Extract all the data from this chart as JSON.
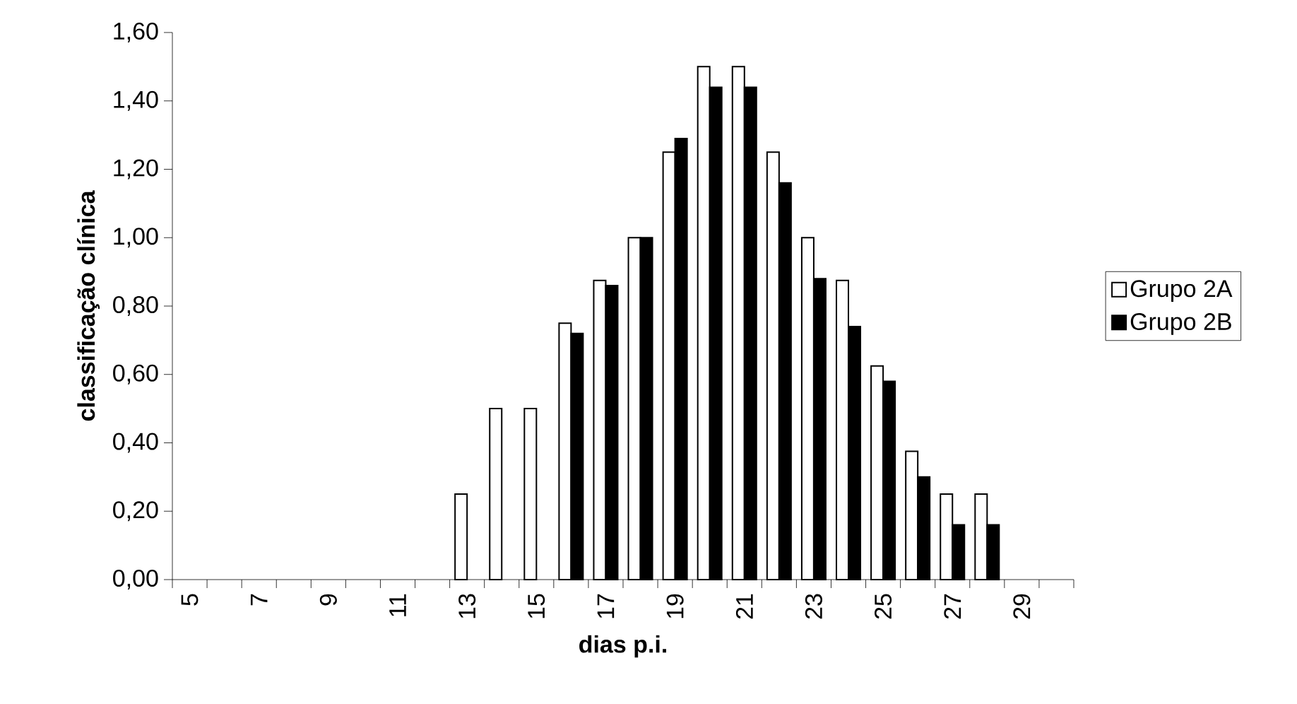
{
  "chart_data": {
    "type": "bar",
    "xlabel": "dias p.i.",
    "ylabel": "classificação clínica",
    "categories": [
      "5",
      null,
      "7",
      null,
      "9",
      null,
      "11",
      null,
      "13",
      null,
      "15",
      null,
      "17",
      null,
      "19",
      null,
      "21",
      null,
      "23",
      null,
      "25",
      null,
      "27",
      null,
      "29",
      null
    ],
    "series": [
      {
        "name": "Grupo 2A",
        "color": "#ffffff",
        "values": [
          null,
          null,
          null,
          null,
          null,
          null,
          null,
          null,
          0.25,
          0.5,
          0.5,
          0.75,
          0.875,
          1.0,
          1.25,
          1.5,
          1.5,
          1.25,
          1.0,
          0.875,
          0.625,
          0.375,
          0.25,
          0.25,
          null,
          null
        ]
      },
      {
        "name": "Grupo 2B",
        "color": "#000000",
        "values": [
          null,
          null,
          null,
          null,
          null,
          null,
          null,
          null,
          null,
          null,
          null,
          0.72,
          0.86,
          1.0,
          1.29,
          1.44,
          1.44,
          1.16,
          0.88,
          0.74,
          0.58,
          0.3,
          0.16,
          0.16,
          null,
          null
        ]
      }
    ],
    "ylim": [
      0,
      1.6
    ],
    "yticks": [
      {
        "value": 0,
        "label": "0,00"
      },
      {
        "value": 0.2,
        "label": "0,20"
      },
      {
        "value": 0.4,
        "label": "0,40"
      },
      {
        "value": 0.6,
        "label": "0,60"
      },
      {
        "value": 0.8,
        "label": "0,80"
      },
      {
        "value": 1.0,
        "label": "1,00"
      },
      {
        "value": 1.2,
        "label": "1,20"
      },
      {
        "value": 1.4,
        "label": "1,40"
      },
      {
        "value": 1.6,
        "label": "1,60"
      }
    ],
    "legend": "right"
  }
}
